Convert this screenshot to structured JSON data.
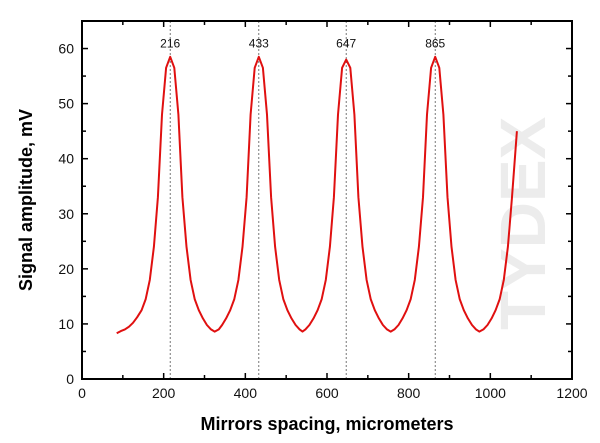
{
  "watermark": {
    "logo_text": "TYDEX"
  },
  "chart_data": {
    "type": "line",
    "title": "",
    "xlabel": "Mirrors spacing, micrometers",
    "ylabel": "Signal amplitude, mV",
    "xlim": [
      0,
      1200
    ],
    "ylim": [
      0,
      65
    ],
    "x_ticks": [
      0,
      200,
      400,
      600,
      800,
      1000,
      1200
    ],
    "y_ticks": [
      0,
      10,
      20,
      30,
      40,
      50,
      60
    ],
    "x_minor_step": 100,
    "y_minor_step": 5,
    "grid": false,
    "line_color": "#e01010",
    "peak_markers": [
      {
        "x": 216,
        "label": "216"
      },
      {
        "x": 433,
        "label": "433"
      },
      {
        "x": 647,
        "label": "647"
      },
      {
        "x": 865,
        "label": "865"
      }
    ],
    "series": [
      {
        "x": [
          85,
          95,
          105,
          115,
          125,
          135,
          146,
          156,
          166,
          176,
          186,
          196,
          206,
          216,
          226,
          236,
          246,
          256,
          266,
          276,
          286,
          296,
          306,
          316,
          325,
          335,
          343,
          353,
          363,
          373,
          383,
          393,
          403,
          413,
          423,
          433,
          443,
          453,
          463,
          473,
          483,
          493,
          503,
          513,
          523,
          533,
          540,
          547,
          557,
          567,
          577,
          587,
          597,
          607,
          617,
          627,
          637,
          647,
          657,
          667,
          677,
          687,
          697,
          707,
          717,
          727,
          737,
          747,
          756,
          765,
          775,
          785,
          795,
          805,
          815,
          825,
          835,
          845,
          855,
          865,
          875,
          885,
          895,
          905,
          915,
          925,
          935,
          945,
          955,
          965,
          973,
          983,
          993,
          1003,
          1013,
          1023,
          1033,
          1043,
          1053,
          1065
        ],
        "y": [
          8.3,
          8.7,
          9.0,
          9.5,
          10.2,
          11.2,
          12.5,
          14.5,
          18,
          24,
          33,
          48,
          56.5,
          58.5,
          56.5,
          48,
          33,
          24,
          18,
          14.5,
          12.5,
          11,
          9.8,
          9,
          8.6,
          9,
          9.8,
          11,
          12.5,
          14.5,
          18,
          24,
          33,
          48,
          56.5,
          58.5,
          56.5,
          48,
          33,
          24,
          18,
          14.5,
          12.5,
          11,
          9.8,
          9,
          8.6,
          9,
          9.8,
          11,
          12.5,
          14.5,
          18,
          24,
          33,
          48,
          56.5,
          58,
          56.5,
          48,
          33,
          24,
          18,
          14.5,
          12.5,
          11,
          9.8,
          9,
          8.6,
          9,
          9.8,
          11,
          12.5,
          14.5,
          18,
          24,
          33,
          48,
          56.5,
          58.5,
          56.5,
          48,
          33,
          24,
          18,
          14.5,
          12.5,
          11,
          9.8,
          9,
          8.6,
          9,
          9.8,
          11,
          12.5,
          14.5,
          18,
          24,
          33,
          45
        ]
      }
    ]
  }
}
